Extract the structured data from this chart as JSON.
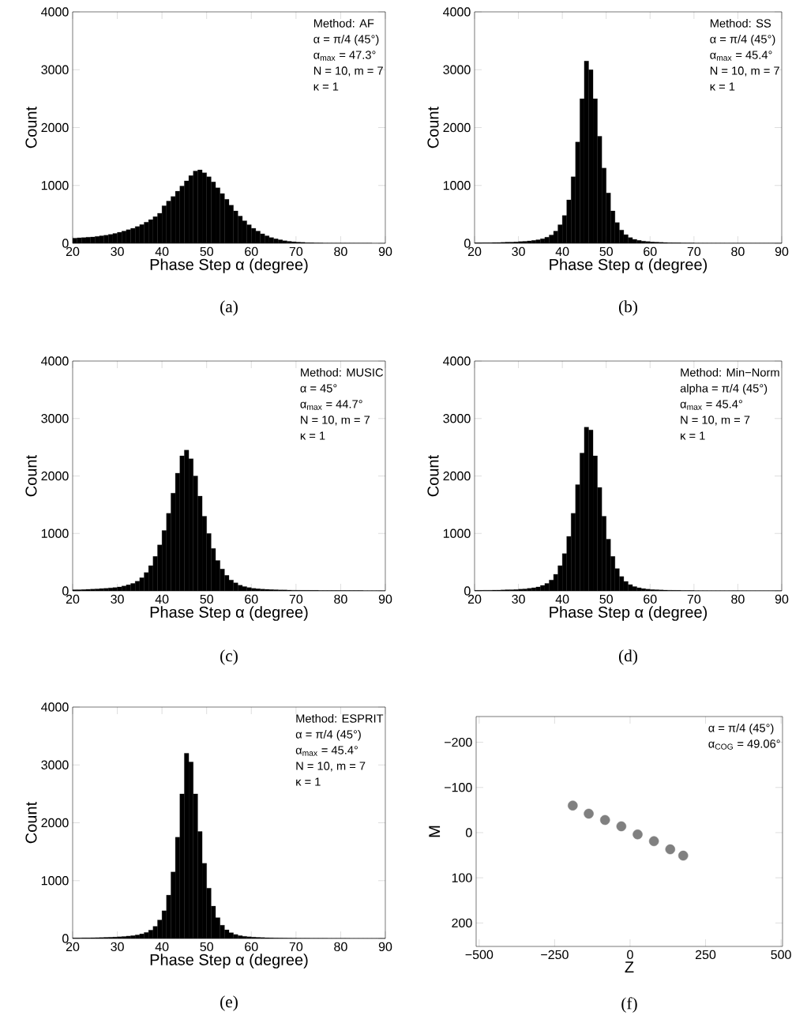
{
  "chart_data": [
    {
      "type": "histogram",
      "title": "(a)",
      "xlabel": "Phase Step α (degree)",
      "ylabel": "Count",
      "color": "#000000",
      "bins": [
        20,
        21,
        22,
        23,
        24,
        25,
        26,
        27,
        28,
        29,
        30,
        31,
        32,
        33,
        34,
        35,
        36,
        37,
        38,
        39,
        40,
        41,
        42,
        43,
        44,
        45,
        46,
        47,
        48,
        49,
        50,
        51,
        52,
        53,
        54,
        55,
        56,
        57,
        58,
        59,
        60,
        61,
        62,
        63,
        64,
        65,
        66,
        67,
        68,
        69,
        70,
        71,
        72,
        73,
        74,
        75,
        76,
        77,
        78,
        79,
        80,
        81,
        82,
        83,
        84,
        85,
        86,
        87,
        88,
        89,
        90
      ],
      "values": [
        90,
        95,
        100,
        105,
        110,
        120,
        130,
        140,
        155,
        170,
        190,
        210,
        235,
        260,
        290,
        325,
        365,
        410,
        460,
        520,
        650,
        730,
        810,
        900,
        990,
        1080,
        1170,
        1250,
        1270,
        1220,
        1150,
        1060,
        960,
        860,
        760,
        660,
        560,
        470,
        390,
        320,
        260,
        210,
        165,
        130,
        100,
        78,
        60,
        45,
        35,
        27,
        20,
        16,
        12,
        10,
        8,
        6,
        5,
        5,
        4,
        4,
        3,
        3,
        3,
        2,
        2,
        2,
        2,
        1,
        1,
        1
      ],
      "xlim": [
        20,
        90
      ],
      "ylim": [
        0,
        4000
      ],
      "xticks": [
        20,
        30,
        40,
        50,
        60,
        70,
        80,
        90
      ],
      "yticks": [
        0,
        1000,
        2000,
        3000,
        4000
      ],
      "annotations": [
        "Method: AF",
        "α = π/4 (45°)",
        "α$_{max}$ = 47.3°",
        "N = 10, m = 7",
        "κ = 1"
      ]
    },
    {
      "type": "histogram",
      "title": "(b)",
      "xlabel": "Phase Step α (degree)",
      "ylabel": "Count",
      "color": "#000000",
      "bins": [
        20,
        21,
        22,
        23,
        24,
        25,
        26,
        27,
        28,
        29,
        30,
        31,
        32,
        33,
        34,
        35,
        36,
        37,
        38,
        39,
        40,
        41,
        42,
        43,
        44,
        45,
        46,
        47,
        48,
        49,
        50,
        51,
        52,
        53,
        54,
        55,
        56,
        57,
        58,
        59,
        60,
        61,
        62,
        63,
        64,
        65,
        66,
        67,
        68,
        69,
        70,
        71,
        72,
        73,
        74,
        75,
        76,
        77,
        78,
        79,
        80,
        81,
        82,
        83,
        84,
        85,
        86,
        87,
        88,
        89,
        90
      ],
      "values": [
        10,
        10,
        12,
        12,
        14,
        15,
        17,
        20,
        22,
        25,
        30,
        35,
        42,
        50,
        62,
        80,
        105,
        145,
        210,
        320,
        480,
        750,
        1150,
        1750,
        2500,
        3150,
        3000,
        2500,
        1850,
        1300,
        870,
        560,
        360,
        230,
        150,
        100,
        70,
        50,
        38,
        30,
        24,
        20,
        17,
        14,
        12,
        10,
        9,
        8,
        7,
        6,
        5,
        5,
        5,
        4,
        4,
        4,
        4,
        3,
        3,
        3,
        3,
        3,
        2,
        2,
        2,
        2,
        2,
        2,
        2,
        2
      ],
      "xlim": [
        20,
        90
      ],
      "ylim": [
        0,
        4000
      ],
      "xticks": [
        20,
        30,
        40,
        50,
        60,
        70,
        80,
        90
      ],
      "yticks": [
        0,
        1000,
        2000,
        3000,
        4000
      ],
      "annotations": [
        "Method: SS",
        "α = π/4 (45°)",
        "α$_{max}$ = 45.4°",
        "N = 10, m = 7",
        "κ = 1"
      ]
    },
    {
      "type": "histogram",
      "title": "(c)",
      "xlabel": "Phase Step α (degree)",
      "ylabel": "Count",
      "color": "#000000",
      "bins": [
        20,
        21,
        22,
        23,
        24,
        25,
        26,
        27,
        28,
        29,
        30,
        31,
        32,
        33,
        34,
        35,
        36,
        37,
        38,
        39,
        40,
        41,
        42,
        43,
        44,
        45,
        46,
        47,
        48,
        49,
        50,
        51,
        52,
        53,
        54,
        55,
        56,
        57,
        58,
        59,
        60,
        61,
        62,
        63,
        64,
        65,
        66,
        67,
        68,
        69,
        70,
        71,
        72,
        73,
        74,
        75,
        76,
        77,
        78,
        79,
        80,
        81,
        82,
        83,
        84,
        85,
        86,
        87,
        88,
        89,
        90
      ],
      "values": [
        20,
        22,
        25,
        28,
        32,
        36,
        40,
        46,
        52,
        60,
        70,
        85,
        105,
        130,
        170,
        230,
        320,
        440,
        600,
        800,
        1050,
        1350,
        1700,
        2050,
        2350,
        2450,
        2300,
        2000,
        1650,
        1300,
        1000,
        740,
        530,
        380,
        270,
        190,
        140,
        100,
        75,
        58,
        45,
        38,
        32,
        27,
        23,
        20,
        18,
        16,
        14,
        12,
        11,
        10,
        10,
        9,
        9,
        8,
        8,
        8,
        7,
        7,
        7,
        6,
        6,
        6,
        6,
        5,
        5,
        5,
        5,
        5
      ],
      "xlim": [
        20,
        90
      ],
      "ylim": [
        0,
        4000
      ],
      "xticks": [
        20,
        30,
        40,
        50,
        60,
        70,
        80,
        90
      ],
      "yticks": [
        0,
        1000,
        2000,
        3000,
        4000
      ],
      "annotations": [
        "Method: MUSIC",
        "α = 45°",
        "α$_{max}$ = 44.7°",
        "N = 10, m = 7",
        "κ = 1"
      ]
    },
    {
      "type": "histogram",
      "title": "(d)",
      "xlabel": "Phase Step α (degree)",
      "ylabel": "Count",
      "color": "#000000",
      "bins": [
        20,
        21,
        22,
        23,
        24,
        25,
        26,
        27,
        28,
        29,
        30,
        31,
        32,
        33,
        34,
        35,
        36,
        37,
        38,
        39,
        40,
        41,
        42,
        43,
        44,
        45,
        46,
        47,
        48,
        49,
        50,
        51,
        52,
        53,
        54,
        55,
        56,
        57,
        58,
        59,
        60,
        61,
        62,
        63,
        64,
        65,
        66,
        67,
        68,
        69,
        70,
        71,
        72,
        73,
        74,
        75,
        76,
        77,
        78,
        79,
        80,
        81,
        82,
        83,
        84,
        85,
        86,
        87,
        88,
        89,
        90
      ],
      "values": [
        10,
        10,
        12,
        12,
        14,
        15,
        17,
        20,
        22,
        25,
        30,
        36,
        45,
        55,
        70,
        95,
        130,
        190,
        290,
        440,
        650,
        950,
        1350,
        1850,
        2400,
        2850,
        2800,
        2350,
        1800,
        1300,
        900,
        600,
        390,
        250,
        165,
        110,
        75,
        55,
        40,
        30,
        24,
        20,
        17,
        14,
        12,
        10,
        9,
        8,
        7,
        6,
        5,
        5,
        5,
        4,
        4,
        4,
        4,
        3,
        3,
        3,
        3,
        3,
        2,
        2,
        2,
        2,
        2,
        2,
        2,
        2
      ],
      "xlim": [
        20,
        90
      ],
      "ylim": [
        0,
        4000
      ],
      "xticks": [
        20,
        30,
        40,
        50,
        60,
        70,
        80,
        90
      ],
      "yticks": [
        0,
        1000,
        2000,
        3000,
        4000
      ],
      "annotations": [
        "Method: Min−Norm",
        "alpha = π/4 (45°)",
        "α$_{max}$ = 45.4°",
        "N = 10, m = 7",
        "κ = 1"
      ]
    },
    {
      "type": "histogram",
      "title": "(e)",
      "xlabel": "Phase Step α (degree)",
      "ylabel": "Count",
      "color": "#000000",
      "bins": [
        20,
        21,
        22,
        23,
        24,
        25,
        26,
        27,
        28,
        29,
        30,
        31,
        32,
        33,
        34,
        35,
        36,
        37,
        38,
        39,
        40,
        41,
        42,
        43,
        44,
        45,
        46,
        47,
        48,
        49,
        50,
        51,
        52,
        53,
        54,
        55,
        56,
        57,
        58,
        59,
        60,
        61,
        62,
        63,
        64,
        65,
        66,
        67,
        68,
        69,
        70,
        71,
        72,
        73,
        74,
        75,
        76,
        77,
        78,
        79,
        80,
        81,
        82,
        83,
        84,
        85,
        86,
        87,
        88,
        89,
        90
      ],
      "values": [
        10,
        10,
        12,
        12,
        14,
        15,
        17,
        20,
        22,
        25,
        30,
        35,
        42,
        50,
        62,
        80,
        105,
        145,
        210,
        320,
        480,
        750,
        1150,
        1750,
        2500,
        3200,
        3050,
        2500,
        1850,
        1300,
        870,
        560,
        360,
        230,
        150,
        100,
        70,
        50,
        38,
        30,
        24,
        20,
        17,
        14,
        12,
        10,
        9,
        8,
        7,
        6,
        5,
        5,
        5,
        4,
        4,
        4,
        4,
        3,
        3,
        3,
        3,
        3,
        2,
        2,
        2,
        2,
        2,
        2,
        2,
        2
      ],
      "xlim": [
        20,
        90
      ],
      "ylim": [
        0,
        4000
      ],
      "xticks": [
        20,
        30,
        40,
        50,
        60,
        70,
        80,
        90
      ],
      "yticks": [
        0,
        1000,
        2000,
        3000,
        4000
      ],
      "annotations": [
        "Method: ESPRIT",
        "α = π/4 (45°)",
        "α$_{max}$ = 45.4°",
        "N = 10, m = 7",
        "κ = 1"
      ]
    },
    {
      "type": "scatter",
      "title": "(f)",
      "xlabel": "Z",
      "ylabel": "M",
      "color": "#808080",
      "x": [
        -190,
        -137,
        -83,
        -29,
        25,
        79,
        133,
        176
      ],
      "values": [
        -60,
        -42,
        -28,
        -14,
        4,
        19,
        37,
        51
      ],
      "xlim": [
        -510,
        505
      ],
      "ylim": [
        252,
        -257
      ],
      "xticks": [
        {
          "value": -500,
          "label": "−500"
        },
        {
          "value": -250,
          "label": "−250"
        },
        0,
        250,
        500
      ],
      "yticks": [
        {
          "value": -200,
          "label": "−200"
        },
        {
          "value": -100,
          "label": "−100"
        },
        0,
        100,
        200
      ],
      "annotations": [
        "α = π/4 (45°)",
        "α$_{COG}$ = 49.06°"
      ]
    }
  ]
}
